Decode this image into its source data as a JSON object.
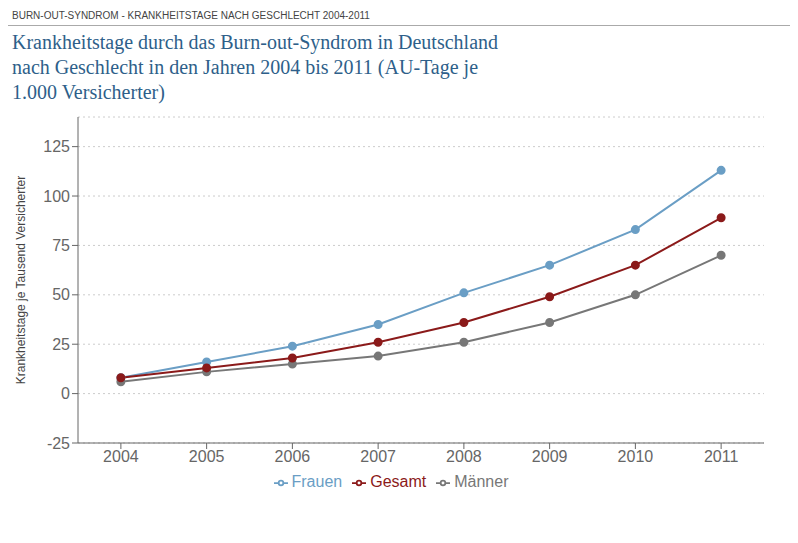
{
  "chart_data": {
    "type": "line",
    "subtitle": "BURN-OUT-SYNDROM - KRANKHEITSTAGE NACH GESCHLECHT 2004-2011",
    "title": "Krankheitstage durch das Burn-out-Syndrom in Deutschland\nnach Geschlecht in den Jahren 2004 bis 2011 (AU-Tage je\n1.000 Versicherter)",
    "y_label": "Krankheitstage je Tausend Versicherter",
    "x": [
      2004,
      2005,
      2006,
      2007,
      2008,
      2009,
      2010,
      2011
    ],
    "xlim": [
      2003.5,
      2011.5
    ],
    "xticks": [
      2004,
      2005,
      2006,
      2007,
      2008,
      2009,
      2010,
      2011
    ],
    "ylim": [
      -25,
      140
    ],
    "yticks": [
      -25,
      0,
      25,
      50,
      75,
      100,
      125
    ],
    "grid": true,
    "legend": "bottom",
    "marker": "circle",
    "series": [
      {
        "name": "Frauen",
        "color": "#6a9ec5",
        "values": [
          8,
          16,
          24,
          35,
          51,
          65,
          83,
          113
        ]
      },
      {
        "name": "Männer",
        "color": "#777777",
        "values": [
          6,
          11,
          15,
          19,
          26,
          36,
          50,
          70
        ]
      },
      {
        "name": "Gesamt",
        "color": "#8b1a1a",
        "values": [
          8,
          13,
          18,
          26,
          36,
          49,
          65,
          89
        ]
      }
    ]
  }
}
